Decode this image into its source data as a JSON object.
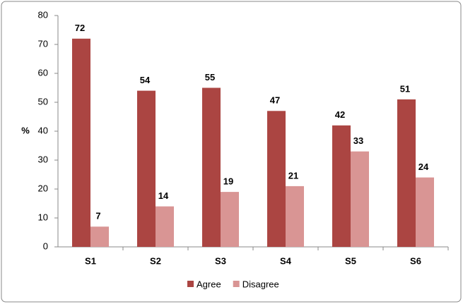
{
  "chart_data": {
    "type": "bar",
    "y_label": "%",
    "categories": [
      "S1",
      "S2",
      "S3",
      "S4",
      "S5",
      "S6"
    ],
    "series": [
      {
        "name": "Agree",
        "color": "#ab4542",
        "values": [
          72,
          54,
          55,
          47,
          42,
          51
        ]
      },
      {
        "name": "Disagree",
        "color": "#d99594",
        "values": [
          7,
          14,
          19,
          21,
          33,
          24
        ]
      }
    ],
    "ylim": [
      0,
      80
    ],
    "yticks": [
      0,
      10,
      20,
      30,
      40,
      50,
      60,
      70,
      80
    ],
    "grid": false,
    "legend": "bottom"
  }
}
